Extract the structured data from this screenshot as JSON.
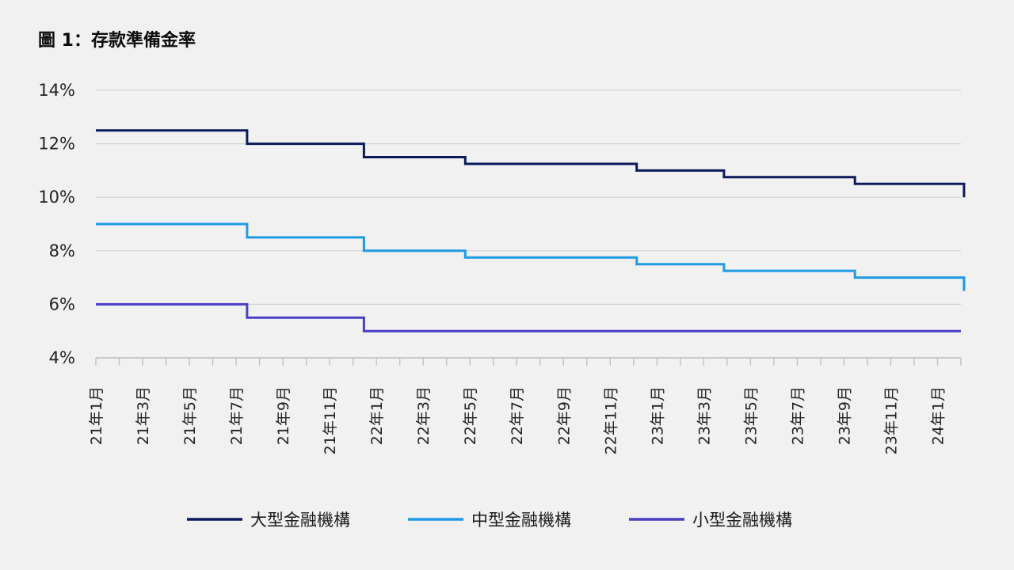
{
  "title": "圖 1：存款準備金率",
  "chart_data": {
    "type": "line",
    "step": true,
    "title": "圖 1：存款準備金率",
    "xlabel": "",
    "ylabel": "",
    "ylim": [
      4,
      14
    ],
    "yticks": [
      "4%",
      "6%",
      "8%",
      "10%",
      "12%",
      "14%"
    ],
    "grid": true,
    "legend_position": "bottom",
    "x_ticks": [
      "21年1月",
      "21年3月",
      "21年5月",
      "21年7月",
      "21年9月",
      "21年11月",
      "22年1月",
      "22年3月",
      "22年5月",
      "22年7月",
      "22年9月",
      "22年11月",
      "23年1月",
      "23年3月",
      "23年5月",
      "23年7月",
      "23年9月",
      "23年11月",
      "24年1月"
    ],
    "x_range": [
      "2021-01",
      "2024-02"
    ],
    "series": [
      {
        "name": "大型金融機構",
        "color": "#0b1a5c",
        "steps": [
          {
            "x": "2021-01",
            "y": 12.5
          },
          {
            "x": "2021-07-15",
            "y": 12.0
          },
          {
            "x": "2021-12-15",
            "y": 11.5
          },
          {
            "x": "2022-04-25",
            "y": 11.25
          },
          {
            "x": "2022-12-05",
            "y": 11.0
          },
          {
            "x": "2023-03-27",
            "y": 10.75
          },
          {
            "x": "2023-09-15",
            "y": 10.5
          },
          {
            "x": "2024-02-05",
            "y": 10.0
          }
        ]
      },
      {
        "name": "中型金融機構",
        "color": "#1f9be3",
        "steps": [
          {
            "x": "2021-01",
            "y": 9.0
          },
          {
            "x": "2021-07-15",
            "y": 8.5
          },
          {
            "x": "2021-12-15",
            "y": 8.0
          },
          {
            "x": "2022-04-25",
            "y": 7.75
          },
          {
            "x": "2022-12-05",
            "y": 7.5
          },
          {
            "x": "2023-03-27",
            "y": 7.25
          },
          {
            "x": "2023-09-15",
            "y": 7.0
          },
          {
            "x": "2024-02-05",
            "y": 6.5
          }
        ]
      },
      {
        "name": "小型金融機構",
        "color": "#4a3fc4",
        "steps": [
          {
            "x": "2021-01",
            "y": 6.0
          },
          {
            "x": "2021-07-15",
            "y": 5.5
          },
          {
            "x": "2021-12-15",
            "y": 5.0
          }
        ]
      }
    ]
  }
}
